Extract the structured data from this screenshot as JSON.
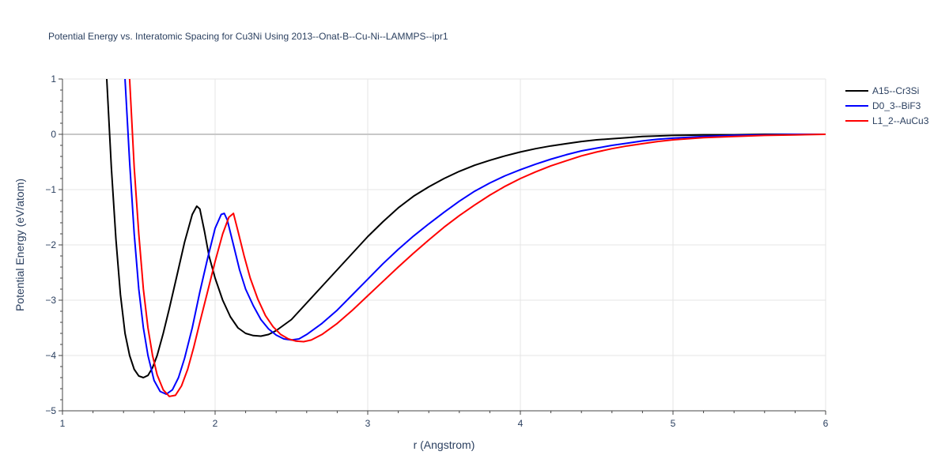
{
  "chart_data": {
    "type": "line",
    "title": "Potential Energy vs. Interatomic Spacing for Cu3Ni Using 2013--Onat-B--Cu-Ni--LAMMPS--ipr1",
    "xlabel": "r (Angstrom)",
    "ylabel": "Potential Energy (eV/atom)",
    "xlim": [
      1,
      6
    ],
    "ylim": [
      -5,
      1
    ],
    "xticks": [
      1,
      2,
      3,
      4,
      5,
      6
    ],
    "xtick_labels": [
      "1",
      "2",
      "3",
      "4",
      "5",
      "6"
    ],
    "yticks": [
      -5,
      -4,
      -3,
      -2,
      -1,
      0,
      1
    ],
    "ytick_labels": [
      "−5",
      "−4",
      "−3",
      "−2",
      "−1",
      "0",
      "1"
    ],
    "grid": true,
    "legend_position": "top-right",
    "series": [
      {
        "name": "A15--Cr3Si",
        "color": "#000000",
        "x": [
          1.29,
          1.32,
          1.35,
          1.38,
          1.41,
          1.44,
          1.47,
          1.5,
          1.53,
          1.56,
          1.59,
          1.62,
          1.66,
          1.7,
          1.75,
          1.8,
          1.85,
          1.88,
          1.9,
          1.93,
          1.96,
          2.0,
          2.05,
          2.1,
          2.15,
          2.2,
          2.25,
          2.3,
          2.35,
          2.4,
          2.5,
          2.6,
          2.7,
          2.8,
          2.9,
          3.0,
          3.1,
          3.2,
          3.3,
          3.4,
          3.5,
          3.6,
          3.7,
          3.8,
          3.9,
          4.0,
          4.1,
          4.2,
          4.3,
          4.4,
          4.5,
          4.6,
          4.7,
          4.8,
          4.9,
          5.0,
          5.2,
          5.4,
          5.6,
          5.8,
          6.0
        ],
        "y": [
          1.0,
          -0.6,
          -1.9,
          -2.9,
          -3.6,
          -4.0,
          -4.25,
          -4.37,
          -4.4,
          -4.36,
          -4.22,
          -4.0,
          -3.6,
          -3.15,
          -2.55,
          -1.95,
          -1.45,
          -1.3,
          -1.35,
          -1.75,
          -2.2,
          -2.6,
          -3.0,
          -3.3,
          -3.5,
          -3.6,
          -3.64,
          -3.65,
          -3.62,
          -3.55,
          -3.35,
          -3.05,
          -2.75,
          -2.45,
          -2.15,
          -1.85,
          -1.58,
          -1.33,
          -1.12,
          -0.95,
          -0.8,
          -0.67,
          -0.56,
          -0.47,
          -0.39,
          -0.32,
          -0.26,
          -0.21,
          -0.17,
          -0.13,
          -0.1,
          -0.08,
          -0.06,
          -0.04,
          -0.03,
          -0.02,
          -0.01,
          -0.01,
          0.0,
          0.0,
          0.0
        ]
      },
      {
        "name": "D0_3--BiF3",
        "color": "#0000ff",
        "x": [
          1.41,
          1.44,
          1.47,
          1.5,
          1.53,
          1.56,
          1.6,
          1.64,
          1.68,
          1.72,
          1.76,
          1.8,
          1.85,
          1.9,
          1.95,
          2.0,
          2.04,
          2.06,
          2.08,
          2.12,
          2.16,
          2.2,
          2.25,
          2.3,
          2.35,
          2.4,
          2.45,
          2.5,
          2.55,
          2.6,
          2.7,
          2.8,
          2.9,
          3.0,
          3.1,
          3.2,
          3.3,
          3.4,
          3.5,
          3.6,
          3.7,
          3.8,
          3.9,
          4.0,
          4.1,
          4.2,
          4.3,
          4.4,
          4.5,
          4.6,
          4.7,
          4.8,
          4.9,
          5.0,
          5.2,
          5.4,
          5.6,
          5.8,
          6.0
        ],
        "y": [
          1.0,
          -0.5,
          -1.8,
          -2.8,
          -3.5,
          -4.0,
          -4.45,
          -4.65,
          -4.7,
          -4.62,
          -4.4,
          -4.05,
          -3.5,
          -2.85,
          -2.25,
          -1.7,
          -1.45,
          -1.43,
          -1.55,
          -2.0,
          -2.45,
          -2.8,
          -3.1,
          -3.35,
          -3.52,
          -3.63,
          -3.7,
          -3.72,
          -3.7,
          -3.62,
          -3.42,
          -3.18,
          -2.9,
          -2.62,
          -2.34,
          -2.08,
          -1.84,
          -1.62,
          -1.41,
          -1.21,
          -1.03,
          -0.88,
          -0.75,
          -0.64,
          -0.54,
          -0.45,
          -0.37,
          -0.3,
          -0.25,
          -0.2,
          -0.16,
          -0.12,
          -0.09,
          -0.07,
          -0.04,
          -0.02,
          -0.01,
          0.0,
          0.0
        ]
      },
      {
        "name": "L1_2--AuCu3",
        "color": "#ff0000",
        "x": [
          1.44,
          1.47,
          1.5,
          1.53,
          1.56,
          1.59,
          1.62,
          1.66,
          1.7,
          1.74,
          1.78,
          1.82,
          1.86,
          1.9,
          1.95,
          2.0,
          2.05,
          2.09,
          2.12,
          2.15,
          2.19,
          2.23,
          2.28,
          2.33,
          2.38,
          2.43,
          2.48,
          2.53,
          2.58,
          2.63,
          2.7,
          2.8,
          2.9,
          3.0,
          3.1,
          3.2,
          3.3,
          3.4,
          3.5,
          3.6,
          3.7,
          3.8,
          3.9,
          4.0,
          4.1,
          4.2,
          4.3,
          4.4,
          4.5,
          4.6,
          4.7,
          4.8,
          4.9,
          5.0,
          5.2,
          5.4,
          5.6,
          5.8,
          6.0
        ],
        "y": [
          1.0,
          -0.6,
          -1.8,
          -2.8,
          -3.5,
          -4.0,
          -4.35,
          -4.62,
          -4.74,
          -4.72,
          -4.55,
          -4.25,
          -3.85,
          -3.4,
          -2.85,
          -2.3,
          -1.8,
          -1.5,
          -1.43,
          -1.75,
          -2.2,
          -2.6,
          -2.98,
          -3.28,
          -3.48,
          -3.62,
          -3.7,
          -3.74,
          -3.75,
          -3.72,
          -3.62,
          -3.42,
          -3.18,
          -2.92,
          -2.66,
          -2.4,
          -2.15,
          -1.91,
          -1.68,
          -1.47,
          -1.28,
          -1.1,
          -0.94,
          -0.8,
          -0.68,
          -0.57,
          -0.48,
          -0.39,
          -0.32,
          -0.26,
          -0.21,
          -0.17,
          -0.13,
          -0.1,
          -0.06,
          -0.04,
          -0.02,
          -0.01,
          0.0
        ]
      }
    ]
  }
}
